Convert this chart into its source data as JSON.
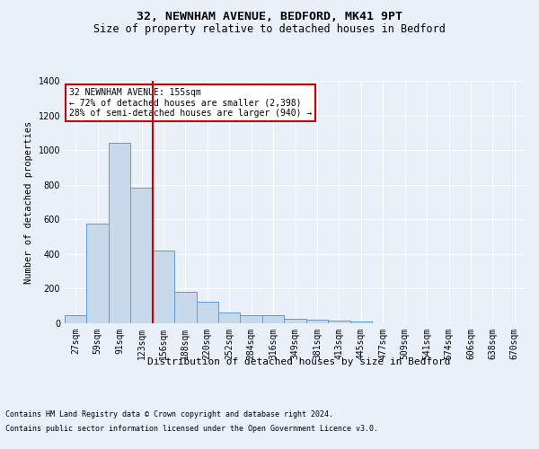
{
  "title1": "32, NEWNHAM AVENUE, BEDFORD, MK41 9PT",
  "title2": "Size of property relative to detached houses in Bedford",
  "xlabel": "Distribution of detached houses by size in Bedford",
  "ylabel": "Number of detached properties",
  "categories": [
    "27sqm",
    "59sqm",
    "91sqm",
    "123sqm",
    "156sqm",
    "188sqm",
    "220sqm",
    "252sqm",
    "284sqm",
    "316sqm",
    "349sqm",
    "381sqm",
    "413sqm",
    "445sqm",
    "477sqm",
    "509sqm",
    "541sqm",
    "574sqm",
    "606sqm",
    "638sqm",
    "670sqm"
  ],
  "values": [
    45,
    575,
    1040,
    785,
    420,
    180,
    125,
    60,
    45,
    45,
    25,
    20,
    15,
    10,
    0,
    0,
    0,
    0,
    0,
    0,
    0
  ],
  "bar_color": "#c9d9ec",
  "bar_edge_color": "#5b9bd5",
  "vline_index": 4,
  "vline_color": "#cc0000",
  "ylim": [
    0,
    1400
  ],
  "yticks": [
    0,
    200,
    400,
    600,
    800,
    1000,
    1200,
    1400
  ],
  "annotation_title": "32 NEWNHAM AVENUE: 155sqm",
  "annotation_line1": "← 72% of detached houses are smaller (2,398)",
  "annotation_line2": "28% of semi-detached houses are larger (940) →",
  "annotation_box_color": "#cc0000",
  "footer1": "Contains HM Land Registry data © Crown copyright and database right 2024.",
  "footer2": "Contains public sector information licensed under the Open Government Licence v3.0.",
  "bg_color": "#eaf0f8",
  "plot_bg_color": "#eaf0f8",
  "grid_color": "#ffffff",
  "title1_fontsize": 9.5,
  "title2_fontsize": 8.5,
  "ylabel_fontsize": 7.5,
  "xlabel_fontsize": 8,
  "footer_fontsize": 6,
  "tick_fontsize": 7,
  "annot_fontsize": 7
}
